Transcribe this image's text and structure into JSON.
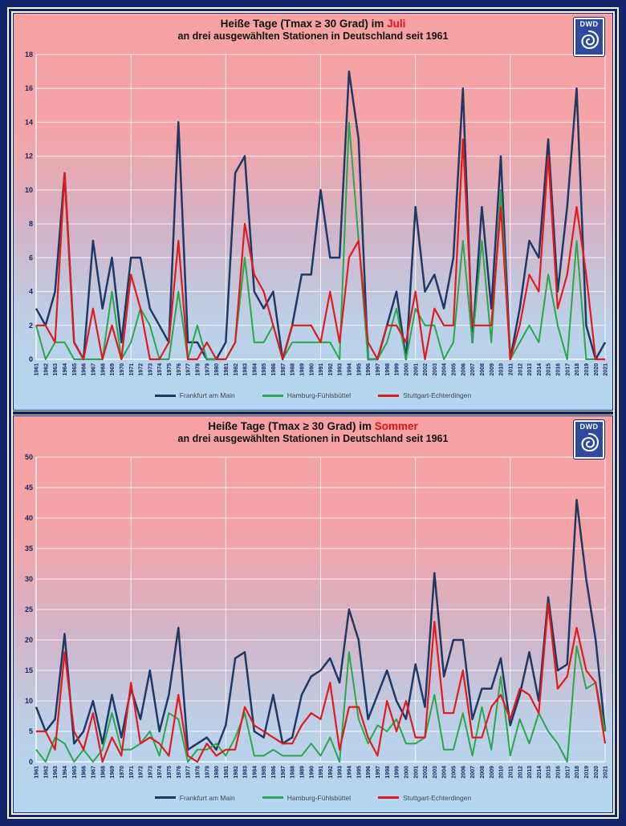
{
  "colors": {
    "frame_navy": "#14246a",
    "series_frankfurt": "#1f3864",
    "series_hamburg": "#2aa64c",
    "series_stuttgart": "#e11b1b",
    "title_highlight": "#e01212",
    "background_top": "#f7a1a1",
    "background_bottom": "#b4d7f0",
    "logo_blue": "#2d4aa0"
  },
  "logo": {
    "text": "DWD",
    "icon": "spiral-icon"
  },
  "charts": [
    {
      "id": "juli",
      "title_prefix": "Heiße Tage (Tmax ≥ 30 Grad) im ",
      "title_highlight": "Juli",
      "subtitle": "an drei ausgewählten Stationen in Deutschland seit 1961",
      "chart_data": {
        "type": "line",
        "title": "Heiße Tage (Tmax ≥ 30 Grad) im Juli",
        "subtitle": "an drei ausgewählten Stationen in Deutschland seit 1961",
        "x": [
          1961,
          1962,
          1963,
          1964,
          1965,
          1966,
          1967,
          1968,
          1969,
          1970,
          1971,
          1972,
          1973,
          1974,
          1975,
          1976,
          1977,
          1978,
          1979,
          1980,
          1981,
          1982,
          1983,
          1984,
          1985,
          1986,
          1987,
          1988,
          1989,
          1990,
          1991,
          1992,
          1993,
          1994,
          1995,
          1996,
          1997,
          1998,
          1999,
          2000,
          2001,
          2002,
          2003,
          2004,
          2005,
          2006,
          2007,
          2008,
          2009,
          2010,
          2011,
          2012,
          2013,
          2014,
          2015,
          2016,
          2017,
          2018,
          2019,
          2020,
          2021
        ],
        "ylim": [
          0,
          18
        ],
        "ytick_step": 2,
        "vgrid_every_years": 10,
        "grid": true,
        "legend_position": "bottom",
        "series": [
          {
            "name": "Frankfurt am Main",
            "color": "#1f3864",
            "width": 2.5,
            "values": [
              3,
              2,
              4,
              11,
              1,
              0,
              7,
              3,
              6,
              1,
              6,
              6,
              3,
              2,
              1,
              14,
              1,
              1,
              0,
              0,
              1,
              11,
              12,
              4,
              3,
              4,
              0,
              2,
              5,
              5,
              10,
              6,
              6,
              17,
              13,
              0,
              0,
              2,
              4,
              0,
              9,
              4,
              5,
              3,
              6,
              16,
              1,
              9,
              3,
              12,
              0,
              3,
              7,
              6,
              13,
              4,
              9,
              16,
              2,
              0,
              1
            ]
          },
          {
            "name": "Hamburg-Fühlsbüttel",
            "color": "#2aa64c",
            "width": 2,
            "values": [
              2,
              0,
              1,
              1,
              0,
              0,
              0,
              0,
              4,
              0,
              1,
              3,
              2,
              0,
              0,
              4,
              0,
              2,
              0,
              0,
              0,
              1,
              6,
              1,
              1,
              2,
              0,
              1,
              1,
              1,
              1,
              1,
              0,
              14,
              7,
              0,
              0,
              1,
              3,
              0,
              3,
              2,
              2,
              0,
              1,
              7,
              1,
              7,
              1,
              10,
              0,
              1,
              2,
              1,
              5,
              2,
              0,
              7,
              0,
              0,
              0
            ]
          },
          {
            "name": "Stuttgart-Echterdingen",
            "color": "#e11b1b",
            "width": 2.2,
            "values": [
              2,
              2,
              1,
              11,
              1,
              0,
              3,
              0,
              2,
              0,
              5,
              3,
              0,
              0,
              1,
              7,
              0,
              0,
              1,
              0,
              0,
              1,
              8,
              5,
              4,
              2,
              0,
              2,
              2,
              2,
              1,
              4,
              1,
              6,
              7,
              1,
              0,
              2,
              2,
              1,
              4,
              0,
              3,
              2,
              2,
              13,
              2,
              2,
              2,
              9,
              0,
              2,
              5,
              4,
              12,
              3,
              5,
              9,
              5,
              0,
              0
            ]
          }
        ]
      }
    },
    {
      "id": "sommer",
      "title_prefix": "Heiße Tage (Tmax ≥ 30 Grad) im ",
      "title_highlight": "Sommer",
      "subtitle": "an drei ausgewählten Stationen in Deutschland seit 1961",
      "chart_data": {
        "type": "line",
        "title": "Heiße Tage (Tmax ≥ 30 Grad) im Sommer",
        "subtitle": "an drei ausgewählten Stationen in Deutschland seit 1961",
        "x": [
          1961,
          1962,
          1963,
          1964,
          1965,
          1966,
          1967,
          1968,
          1969,
          1970,
          1971,
          1972,
          1973,
          1974,
          1975,
          1976,
          1977,
          1978,
          1979,
          1980,
          1981,
          1982,
          1983,
          1984,
          1985,
          1986,
          1987,
          1988,
          1989,
          1990,
          1991,
          1992,
          1993,
          1994,
          1995,
          1996,
          1997,
          1998,
          1999,
          2000,
          2001,
          2002,
          2003,
          2004,
          2005,
          2006,
          2007,
          2008,
          2009,
          2010,
          2011,
          2012,
          2013,
          2014,
          2015,
          2016,
          2017,
          2018,
          2019,
          2020,
          2021
        ],
        "ylim": [
          0,
          50
        ],
        "ytick_step": 5,
        "vgrid_every_years": 10,
        "grid": true,
        "legend_position": "bottom",
        "series": [
          {
            "name": "Frankfurt am Main",
            "color": "#1f3864",
            "width": 2.5,
            "values": [
              9,
              5,
              7,
              21,
              3,
              5,
              10,
              3,
              11,
              4,
              12,
              7,
              15,
              5,
              11,
              22,
              2,
              3,
              4,
              2,
              6,
              17,
              18,
              5,
              4,
              11,
              3,
              4,
              11,
              14,
              15,
              17,
              13,
              25,
              20,
              7,
              11,
              15,
              10,
              7,
              16,
              9,
              31,
              14,
              20,
              20,
              7,
              12,
              12,
              17,
              6,
              11,
              18,
              10,
              27,
              15,
              16,
              43,
              30,
              20,
              5
            ]
          },
          {
            "name": "Hamburg-Fühlsbüttel",
            "color": "#2aa64c",
            "width": 2,
            "values": [
              2,
              0,
              4,
              3,
              0,
              2,
              0,
              2,
              8,
              2,
              2,
              3,
              5,
              1,
              8,
              7,
              0,
              2,
              2,
              3,
              1,
              4,
              8,
              1,
              1,
              2,
              1,
              1,
              1,
              3,
              1,
              4,
              0,
              18,
              7,
              3,
              6,
              5,
              7,
              3,
              3,
              4,
              11,
              2,
              2,
              8,
              1,
              9,
              2,
              14,
              1,
              7,
              3,
              8,
              5,
              3,
              0,
              19,
              12,
              13,
              5
            ]
          },
          {
            "name": "Stuttgart-Echterdingen",
            "color": "#e11b1b",
            "width": 2.2,
            "values": [
              5,
              5,
              2,
              18,
              5,
              2,
              8,
              0,
              4,
              1,
              13,
              3,
              4,
              3,
              1,
              11,
              1,
              0,
              3,
              1,
              2,
              2,
              9,
              6,
              5,
              4,
              3,
              3,
              6,
              8,
              7,
              13,
              2,
              9,
              9,
              4,
              1,
              10,
              5,
              10,
              4,
              4,
              23,
              8,
              8,
              15,
              4,
              4,
              9,
              11,
              7,
              12,
              11,
              8,
              26,
              12,
              14,
              22,
              15,
              13,
              3
            ]
          }
        ]
      }
    }
  ]
}
